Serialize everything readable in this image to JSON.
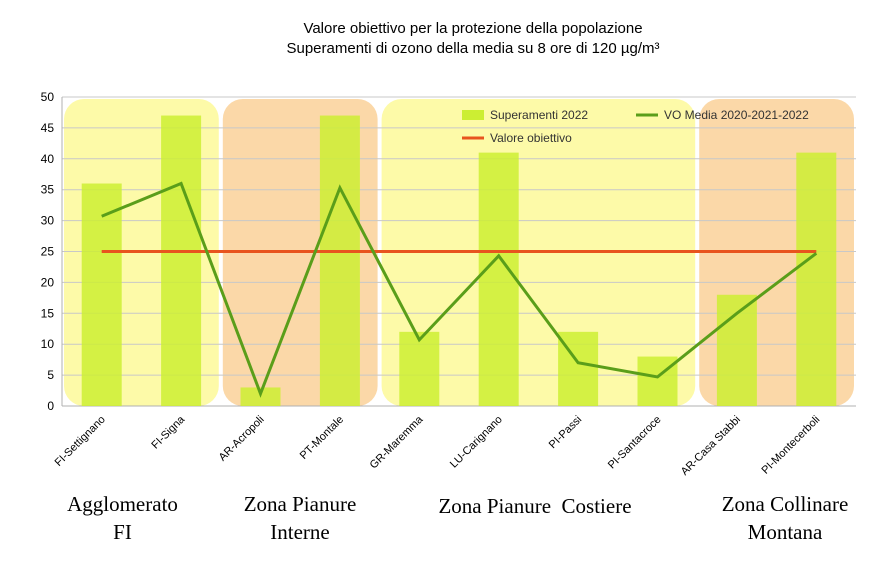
{
  "chart_data": {
    "type": "bar",
    "title": "Valore obiettivo per la protezione della popolazione",
    "subtitle": "Superamenti di ozono della media su 8 ore di 120 µg/m³",
    "categories": [
      "FI-Settignano",
      "FI-Signa",
      "AR-Acropoli",
      "PT-Montale",
      "GR-Maremma",
      "LU-Carignano",
      "PI-Passi",
      "PI-Santacroce",
      "AR-Casa Stabbi",
      "PI-Montecerboli"
    ],
    "series": [
      {
        "name": "Superamenti 2022",
        "type": "bar",
        "values": [
          36,
          47,
          3,
          47,
          12,
          41,
          12,
          8,
          18,
          41
        ],
        "color": "#ccee33"
      },
      {
        "name": "VO Media 2020-2021-2022",
        "type": "line",
        "values": [
          30.7,
          36,
          2,
          35.3,
          10.7,
          24.3,
          7,
          4.7,
          15,
          24.7
        ],
        "color": "#5a9e1a"
      },
      {
        "name": "Valore obiettivo",
        "type": "line",
        "values": [
          25,
          25,
          25,
          25,
          25,
          25,
          25,
          25,
          25,
          25
        ],
        "color": "#e8541e"
      }
    ],
    "ylim": [
      0,
      50
    ],
    "yticks": [
      0,
      5,
      10,
      15,
      20,
      25,
      30,
      35,
      40,
      45,
      50
    ],
    "grid": true,
    "legend": "top-right",
    "zones": [
      {
        "label": [
          "Agglomerato",
          "FI"
        ],
        "start": 0,
        "end": 1,
        "color": "#fdfaa8"
      },
      {
        "label": [
          "Zona Pianure",
          "Interne"
        ],
        "start": 2,
        "end": 3,
        "color": "#fbd8a8"
      },
      {
        "label": [
          "Zona Pianure",
          "Costiere"
        ],
        "start": 4,
        "end": 7,
        "color": "#fdfaa8"
      },
      {
        "label": [
          "Zona Collinare",
          "Montana"
        ],
        "start": 8,
        "end": 9,
        "color": "#fbd8a8"
      }
    ]
  }
}
